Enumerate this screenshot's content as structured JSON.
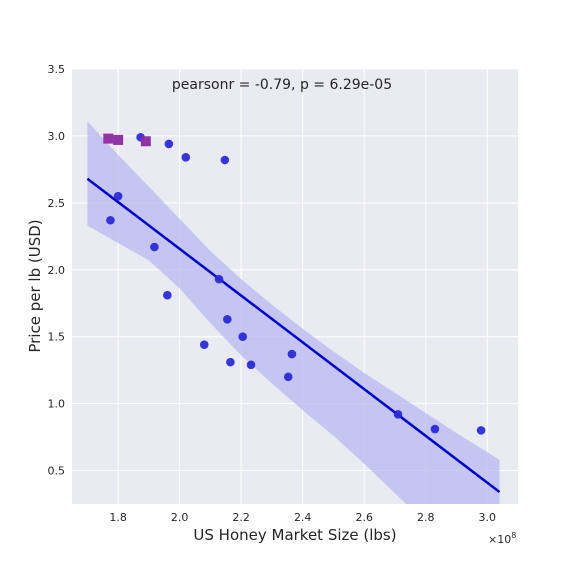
{
  "chart_data": {
    "type": "scatter",
    "title": "",
    "xlabel": "US Honey Market Size (lbs)",
    "ylabel": "Price per lb (USD)",
    "x_offset_label": "×10",
    "x_offset_exponent": "8",
    "x_scale": 100000000,
    "xlim": [
      1.65,
      3.1
    ],
    "ylim": [
      0.25,
      3.5
    ],
    "x_ticks": [
      1.8,
      2.0,
      2.2,
      2.4,
      2.6,
      2.8,
      3.0
    ],
    "x_tick_labels": [
      "1.8",
      "2.0",
      "2.2",
      "2.4",
      "2.6",
      "2.8",
      "3.0"
    ],
    "y_ticks": [
      0.5,
      1.0,
      1.5,
      2.0,
      2.5,
      3.0,
      3.5
    ],
    "y_tick_labels": [
      "0.5",
      "1.0",
      "1.5",
      "2.0",
      "2.5",
      "3.0",
      "3.5"
    ],
    "grid": true,
    "annotation": "pearsonr = -0.79, p = 6.29e-05",
    "colors": {
      "points": "#2b2bd6",
      "highlight": "#8e2a9f",
      "regression": "#0000cc",
      "confidence_band": "#b8b8f0",
      "background": "#eaeaf2",
      "grid": "#ffffff"
    },
    "points": [
      {
        "x": 1.873,
        "y": 2.99
      },
      {
        "x": 1.965,
        "y": 2.94
      },
      {
        "x": 2.02,
        "y": 2.84
      },
      {
        "x": 2.147,
        "y": 2.82
      },
      {
        "x": 1.8,
        "y": 2.55
      },
      {
        "x": 1.775,
        "y": 2.37
      },
      {
        "x": 1.918,
        "y": 2.17
      },
      {
        "x": 2.128,
        "y": 1.93
      },
      {
        "x": 1.96,
        "y": 1.81
      },
      {
        "x": 2.155,
        "y": 1.63
      },
      {
        "x": 2.205,
        "y": 1.5
      },
      {
        "x": 2.08,
        "y": 1.44
      },
      {
        "x": 2.365,
        "y": 1.37
      },
      {
        "x": 2.165,
        "y": 1.31
      },
      {
        "x": 2.232,
        "y": 1.29
      },
      {
        "x": 2.353,
        "y": 1.2
      },
      {
        "x": 2.71,
        "y": 0.92
      },
      {
        "x": 2.83,
        "y": 0.81
      },
      {
        "x": 2.98,
        "y": 0.8
      }
    ],
    "highlighted_points": [
      {
        "x": 1.768,
        "y": 2.98
      },
      {
        "x": 1.8,
        "y": 2.97
      },
      {
        "x": 1.89,
        "y": 2.96
      }
    ],
    "regression_line": {
      "x": [
        1.7,
        3.04
      ],
      "y": [
        2.68,
        0.34
      ]
    },
    "confidence_band": {
      "x": [
        1.7,
        1.8,
        1.9,
        2.0,
        2.1,
        2.2,
        2.3,
        2.4,
        2.5,
        2.6,
        2.7,
        2.8,
        2.9,
        3.04
      ],
      "upper": [
        3.11,
        2.86,
        2.62,
        2.38,
        2.14,
        1.93,
        1.74,
        1.56,
        1.39,
        1.23,
        1.08,
        0.93,
        0.78,
        0.58
      ],
      "lower": [
        2.33,
        2.2,
        2.07,
        1.86,
        1.6,
        1.36,
        1.15,
        0.95,
        0.76,
        0.55,
        0.33,
        0.11,
        -0.11,
        -0.42
      ]
    }
  }
}
